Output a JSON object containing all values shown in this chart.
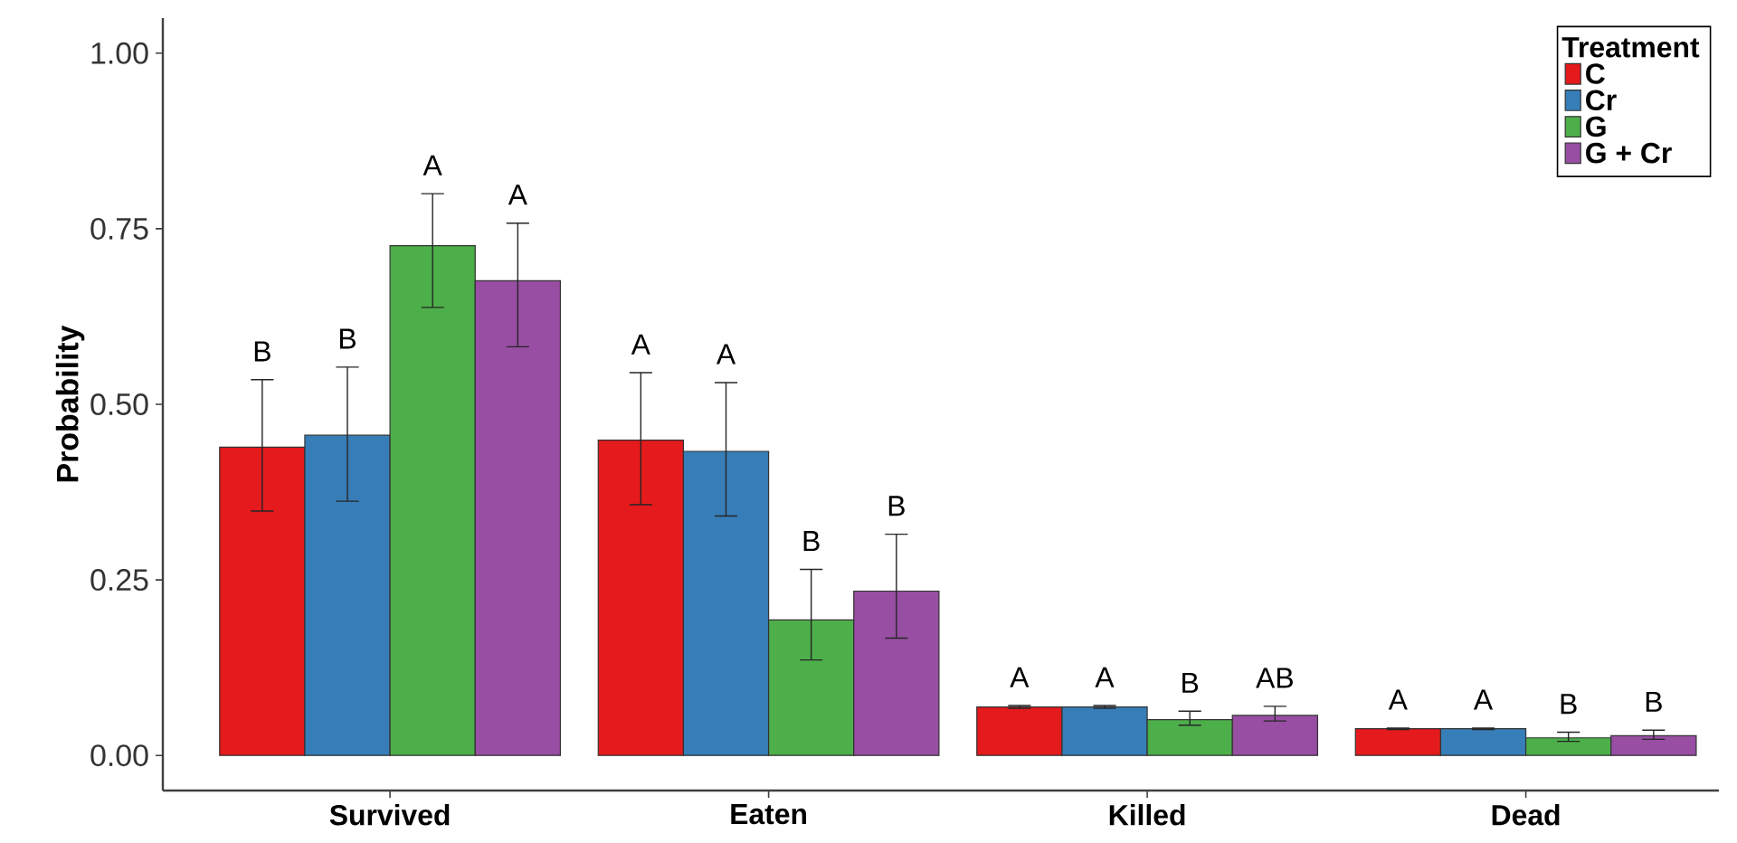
{
  "chart_data": {
    "type": "bar",
    "ylabel": "Probability",
    "legend_title": "Treatment",
    "legend": "top right",
    "categories": [
      "Survived",
      "Eaten",
      "Killed",
      "Dead"
    ],
    "ylim": [
      -0.05,
      1.05
    ],
    "yticks": [
      {
        "value": 0,
        "label": "0.00"
      },
      {
        "value": 0.25,
        "label": "0.25"
      },
      {
        "value": 0.5,
        "label": "0.50"
      },
      {
        "value": 0.75,
        "label": "0.75"
      },
      {
        "value": 1,
        "label": "1.00"
      }
    ],
    "series": [
      {
        "name": "C",
        "color": "#e41a1c",
        "values": [
          0.439,
          0.449,
          0.069,
          0.038
        ],
        "errors": [
          [
            0.348,
            0.535
          ],
          [
            0.357,
            0.545
          ],
          [
            0.067,
            0.071
          ],
          [
            0.037,
            0.039
          ]
        ],
        "value_labels": [
          "B",
          "A",
          "A",
          "A"
        ]
      },
      {
        "name": "Cr",
        "color": "#377eb8",
        "values": [
          0.456,
          0.433,
          0.069,
          0.038
        ],
        "errors": [
          [
            0.362,
            0.553
          ],
          [
            0.341,
            0.531
          ],
          [
            0.067,
            0.071
          ],
          [
            0.037,
            0.039
          ]
        ],
        "value_labels": [
          "B",
          "A",
          "A",
          "A"
        ]
      },
      {
        "name": "G",
        "color": "#4daf4a",
        "values": [
          0.726,
          0.193,
          0.051,
          0.025
        ],
        "errors": [
          [
            0.638,
            0.8
          ],
          [
            0.136,
            0.265
          ],
          [
            0.043,
            0.063
          ],
          [
            0.02,
            0.033
          ]
        ],
        "value_labels": [
          "A",
          "B",
          "B",
          "B"
        ]
      },
      {
        "name": "G + Cr",
        "color": "#984ea3",
        "values": [
          0.676,
          0.234,
          0.057,
          0.028
        ],
        "errors": [
          [
            0.582,
            0.758
          ],
          [
            0.167,
            0.315
          ],
          [
            0.049,
            0.07
          ],
          [
            0.023,
            0.036
          ]
        ],
        "value_labels": [
          "A",
          "B",
          "AB",
          "B"
        ]
      }
    ]
  }
}
